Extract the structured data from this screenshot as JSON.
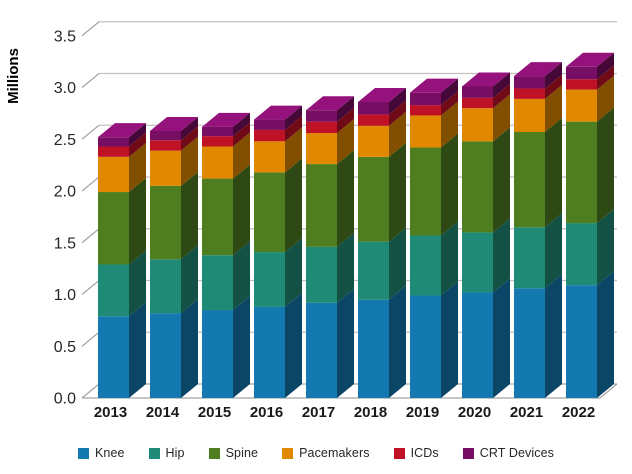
{
  "chart_data": {
    "type": "bar",
    "stacked": true,
    "effect": "3d",
    "title": "",
    "ylabel": "Millions",
    "xlabel": "",
    "ylim": [
      0,
      3.5
    ],
    "ytick_step": 0.5,
    "yticks": [
      "0.0",
      "0.5",
      "1.0",
      "1.5",
      "2.0",
      "2.5",
      "3.0",
      "3.5"
    ],
    "grid": true,
    "legend_position": "bottom",
    "categories": [
      "2013",
      "2014",
      "2015",
      "2016",
      "2017",
      "2018",
      "2019",
      "2020",
      "2021",
      "2022"
    ],
    "series": [
      {
        "name": "Knee",
        "color": "#1379AF",
        "values": [
          0.79,
          0.82,
          0.85,
          0.88,
          0.92,
          0.95,
          0.99,
          1.02,
          1.06,
          1.09
        ]
      },
      {
        "name": "Hip",
        "color": "#1F8B76",
        "values": [
          0.5,
          0.52,
          0.53,
          0.53,
          0.54,
          0.56,
          0.58,
          0.58,
          0.59,
          0.6
        ]
      },
      {
        "name": "Spine",
        "color": "#4F7E20",
        "values": [
          0.7,
          0.71,
          0.74,
          0.77,
          0.8,
          0.82,
          0.85,
          0.88,
          0.92,
          0.98
        ]
      },
      {
        "name": "Pacemakers",
        "color": "#E08800",
        "values": [
          0.34,
          0.34,
          0.31,
          0.3,
          0.3,
          0.3,
          0.31,
          0.32,
          0.32,
          0.31
        ]
      },
      {
        "name": "ICDs",
        "color": "#BF1226",
        "values": [
          0.1,
          0.1,
          0.1,
          0.11,
          0.11,
          0.11,
          0.1,
          0.1,
          0.1,
          0.1
        ]
      },
      {
        "name": "CRT Devices",
        "color": "#770E63",
        "values": [
          0.09,
          0.09,
          0.09,
          0.1,
          0.11,
          0.12,
          0.12,
          0.11,
          0.12,
          0.12
        ]
      }
    ],
    "totals": [
      2.52,
      2.58,
      2.62,
      2.69,
      2.78,
      2.86,
      2.95,
      3.01,
      3.11,
      3.2
    ],
    "colors": {
      "gridline": "#C0C0C0",
      "axis_line": "#A3A3A3",
      "tick_text": "#262626",
      "background": "#FFFFFF"
    }
  }
}
